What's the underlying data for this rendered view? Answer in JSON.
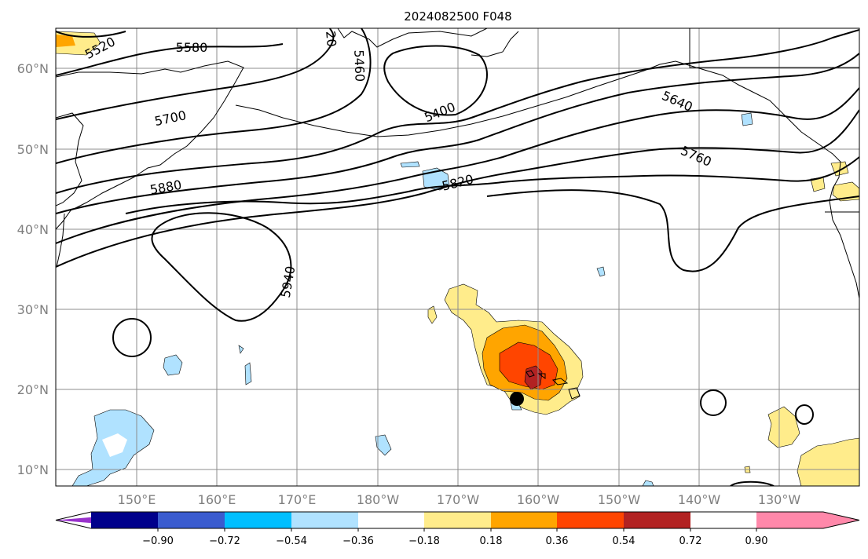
{
  "title": "2024082500 F048",
  "lat_labels": [
    "60°N",
    "50°N",
    "40°N",
    "30°N",
    "20°N",
    "10°N"
  ],
  "lon_labels": [
    "150°E",
    "160°E",
    "170°E",
    "180°W",
    "170°W",
    "160°W",
    "150°W",
    "140°W",
    "130°W"
  ],
  "colorbar": {
    "colors": [
      "#9932cc",
      "#00008b",
      "#3a5bcf",
      "#00bfff",
      "#b0e2ff",
      "#ffffff",
      "#ffec8b",
      "#ffa500",
      "#ff4500",
      "#b22222",
      "#ff88aa"
    ],
    "tick_labels": [
      "−0.90",
      "−0.72",
      "−0.54",
      "−0.36",
      "−0.18",
      "0.18",
      "0.36",
      "0.54",
      "0.72",
      "0.90"
    ]
  },
  "contour_labels": [
    "5520",
    "5580",
    "5700",
    "5880",
    "5940",
    "20",
    "5460",
    "5400",
    "5820",
    "5640",
    "5760"
  ]
}
